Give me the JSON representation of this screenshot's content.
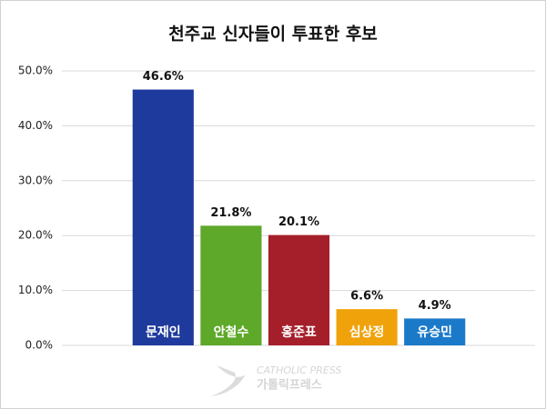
{
  "chart_data": {
    "type": "bar",
    "title": "천주교 신자들이 투표한 후보",
    "categories": [
      "문재인",
      "안철수",
      "홍준표",
      "심상정",
      "유승민"
    ],
    "values": [
      46.6,
      21.8,
      20.1,
      6.6,
      4.9
    ],
    "value_labels": [
      "46.6%",
      "21.8%",
      "20.1%",
      "6.6%",
      "4.9%"
    ],
    "colors": [
      "#1e3a9c",
      "#5ea82a",
      "#a51f2b",
      "#f0a20b",
      "#1b79c9"
    ],
    "ylim": [
      0,
      50
    ],
    "yticks": [
      {
        "value": 0,
        "label": "0.0%"
      },
      {
        "value": 10,
        "label": "10.0%"
      },
      {
        "value": 20,
        "label": "20.0%"
      },
      {
        "value": 30,
        "label": "30.0%"
      },
      {
        "value": 40,
        "label": "40.0%"
      },
      {
        "value": 50,
        "label": "50.0%"
      }
    ],
    "grid": true,
    "watermark": [
      "CATHOLIC PRESS",
      "가톨릭프레스"
    ]
  }
}
